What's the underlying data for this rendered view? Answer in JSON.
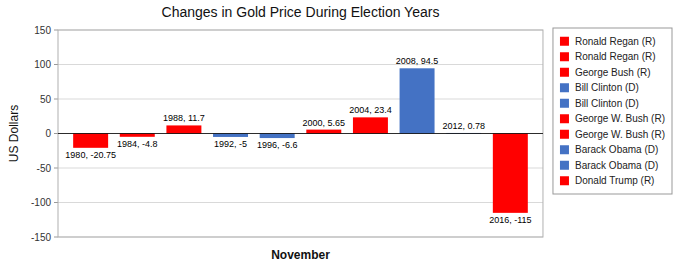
{
  "chart_data": {
    "type": "bar",
    "title": "Changes in Gold Price During Election Years",
    "x_label": "November",
    "y_label": "US Dollars",
    "categories": [
      "1980",
      "1984",
      "1988",
      "1992",
      "1996",
      "2000",
      "2004",
      "2008",
      "2012",
      "2016"
    ],
    "series": [
      {
        "name": "Ronald Regan (R)",
        "color": "#FF0000",
        "values": [
          -20.75,
          null,
          null,
          null,
          null,
          null,
          null,
          null,
          null,
          null
        ],
        "value_labels": [
          "1980, -20.75",
          null,
          null,
          null,
          null,
          null,
          null,
          null,
          null,
          null
        ]
      },
      {
        "name": "Ronald Regan (R)",
        "color": "#FF0000",
        "values": [
          null,
          -4.8,
          null,
          null,
          null,
          null,
          null,
          null,
          null,
          null
        ],
        "value_labels": [
          null,
          "1984, -4.8",
          null,
          null,
          null,
          null,
          null,
          null,
          null,
          null
        ]
      },
      {
        "name": "George Bush (R)",
        "color": "#FF0000",
        "values": [
          null,
          null,
          11.7,
          null,
          null,
          null,
          null,
          null,
          null,
          null
        ],
        "value_labels": [
          null,
          null,
          "1988, 11.7",
          null,
          null,
          null,
          null,
          null,
          null,
          null
        ]
      },
      {
        "name": "Bill Clinton (D)",
        "color": "#4472C4",
        "values": [
          null,
          null,
          null,
          -5,
          null,
          null,
          null,
          null,
          null,
          null
        ],
        "value_labels": [
          null,
          null,
          null,
          "1992, -5",
          null,
          null,
          null,
          null,
          null,
          null
        ]
      },
      {
        "name": "Bill Clinton (D)",
        "color": "#4472C4",
        "values": [
          null,
          null,
          null,
          null,
          -6.6,
          null,
          null,
          null,
          null,
          null
        ],
        "value_labels": [
          null,
          null,
          null,
          null,
          "1996, -6.6",
          null,
          null,
          null,
          null,
          null
        ]
      },
      {
        "name": "George W. Bush (R)",
        "color": "#FF0000",
        "values": [
          null,
          null,
          null,
          null,
          null,
          5.65,
          null,
          null,
          null,
          null
        ],
        "value_labels": [
          null,
          null,
          null,
          null,
          null,
          "2000, 5.65",
          null,
          null,
          null,
          null
        ]
      },
      {
        "name": "George W. Bush (R)",
        "color": "#FF0000",
        "values": [
          null,
          null,
          null,
          null,
          null,
          null,
          23.4,
          null,
          null,
          null
        ],
        "value_labels": [
          null,
          null,
          null,
          null,
          null,
          null,
          "2004, 23.4",
          null,
          null,
          null
        ]
      },
      {
        "name": "Barack Obama (D)",
        "color": "#4472C4",
        "values": [
          null,
          null,
          null,
          null,
          null,
          null,
          null,
          94.5,
          null,
          null
        ],
        "value_labels": [
          null,
          null,
          null,
          null,
          null,
          null,
          null,
          "2008, 94.5",
          null,
          null
        ]
      },
      {
        "name": "Barack Obama (D)",
        "color": "#4472C4",
        "values": [
          null,
          null,
          null,
          null,
          null,
          null,
          null,
          null,
          0.78,
          null
        ],
        "value_labels": [
          null,
          null,
          null,
          null,
          null,
          null,
          null,
          null,
          "2012, 0.78",
          null
        ]
      },
      {
        "name": "Donald Trump (R)",
        "color": "#FF0000",
        "values": [
          null,
          null,
          null,
          null,
          null,
          null,
          null,
          null,
          null,
          -115
        ],
        "value_labels": [
          null,
          null,
          null,
          null,
          null,
          null,
          null,
          null,
          null,
          "2016, -115"
        ]
      }
    ],
    "stacked": true,
    "ylim": [
      -150,
      150
    ],
    "yticks": [
      -150,
      -100,
      -50,
      0,
      50,
      100,
      150
    ],
    "grid": true,
    "legend": "right",
    "data_labels": true,
    "tick_labels": "y"
  }
}
